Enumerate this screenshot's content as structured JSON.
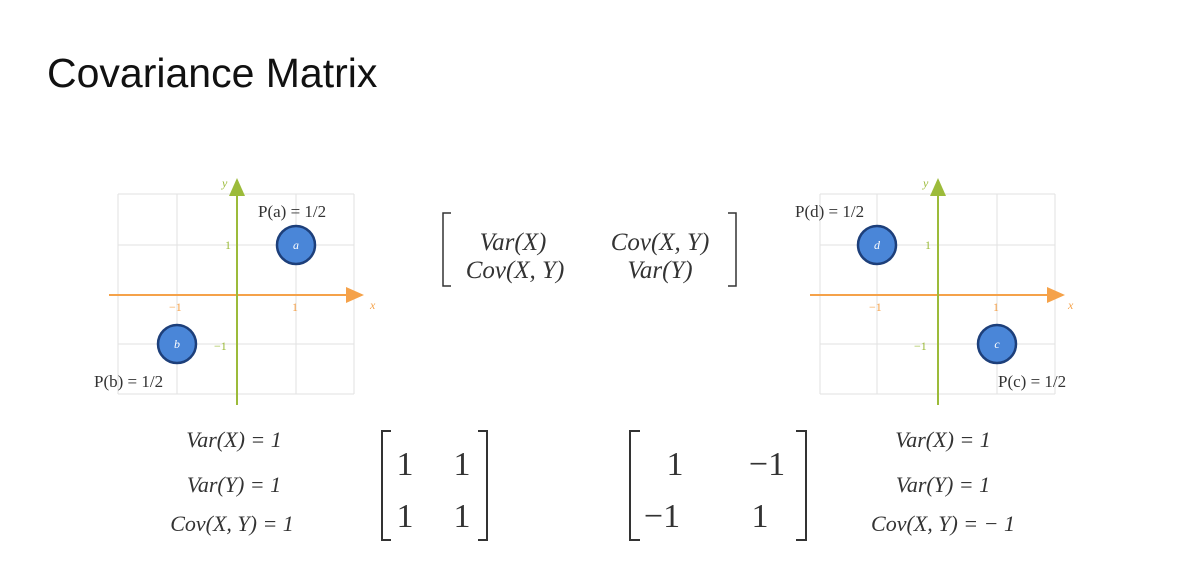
{
  "slide": {
    "title": "Covariance Matrix"
  },
  "colors": {
    "x_axis": "#f5a24a",
    "y_axis": "#9cbb3a",
    "point_fill": "#4a86d8",
    "point_stroke": "#1d3f7a"
  },
  "left_plot": {
    "axis_x": "x",
    "axis_y": "y",
    "ticks": {
      "x_neg": "−1",
      "x_pos": "1",
      "y_pos": "1",
      "y_neg": "−1"
    },
    "points": [
      {
        "label": "a",
        "x": 1,
        "y": 1,
        "prob": "P(a) = 1/2"
      },
      {
        "label": "b",
        "x": -1,
        "y": -1,
        "prob": "P(b) = 1/2"
      }
    ]
  },
  "right_plot": {
    "axis_x": "x",
    "axis_y": "y",
    "ticks": {
      "x_neg": "−1",
      "x_pos": "1",
      "y_pos": "1",
      "y_neg": "−1"
    },
    "points": [
      {
        "label": "d",
        "x": -1,
        "y": 1,
        "prob": "P(d) = 1/2"
      },
      {
        "label": "c",
        "x": 1,
        "y": -1,
        "prob": "P(c) = 1/2"
      }
    ]
  },
  "general_matrix": {
    "r1c1": "Var(X)",
    "r1c2": "Cov(X, Y)",
    "r2c1": "Cov(X, Y)",
    "r2c2": "Var(Y)"
  },
  "left_stats": {
    "var_x": "Var(X) = 1",
    "var_y": "Var(Y) = 1",
    "cov": "Cov(X, Y) = 1"
  },
  "left_matrix": {
    "r1c1": "1",
    "r1c2": "1",
    "r2c1": "1",
    "r2c2": "1"
  },
  "right_matrix": {
    "r1c1": "1",
    "r1c2": "−1",
    "r2c1": "−1",
    "r2c2": "1"
  },
  "right_stats": {
    "var_x": "Var(X) = 1",
    "var_y": "Var(Y) = 1",
    "cov": "Cov(X, Y) = − 1"
  }
}
